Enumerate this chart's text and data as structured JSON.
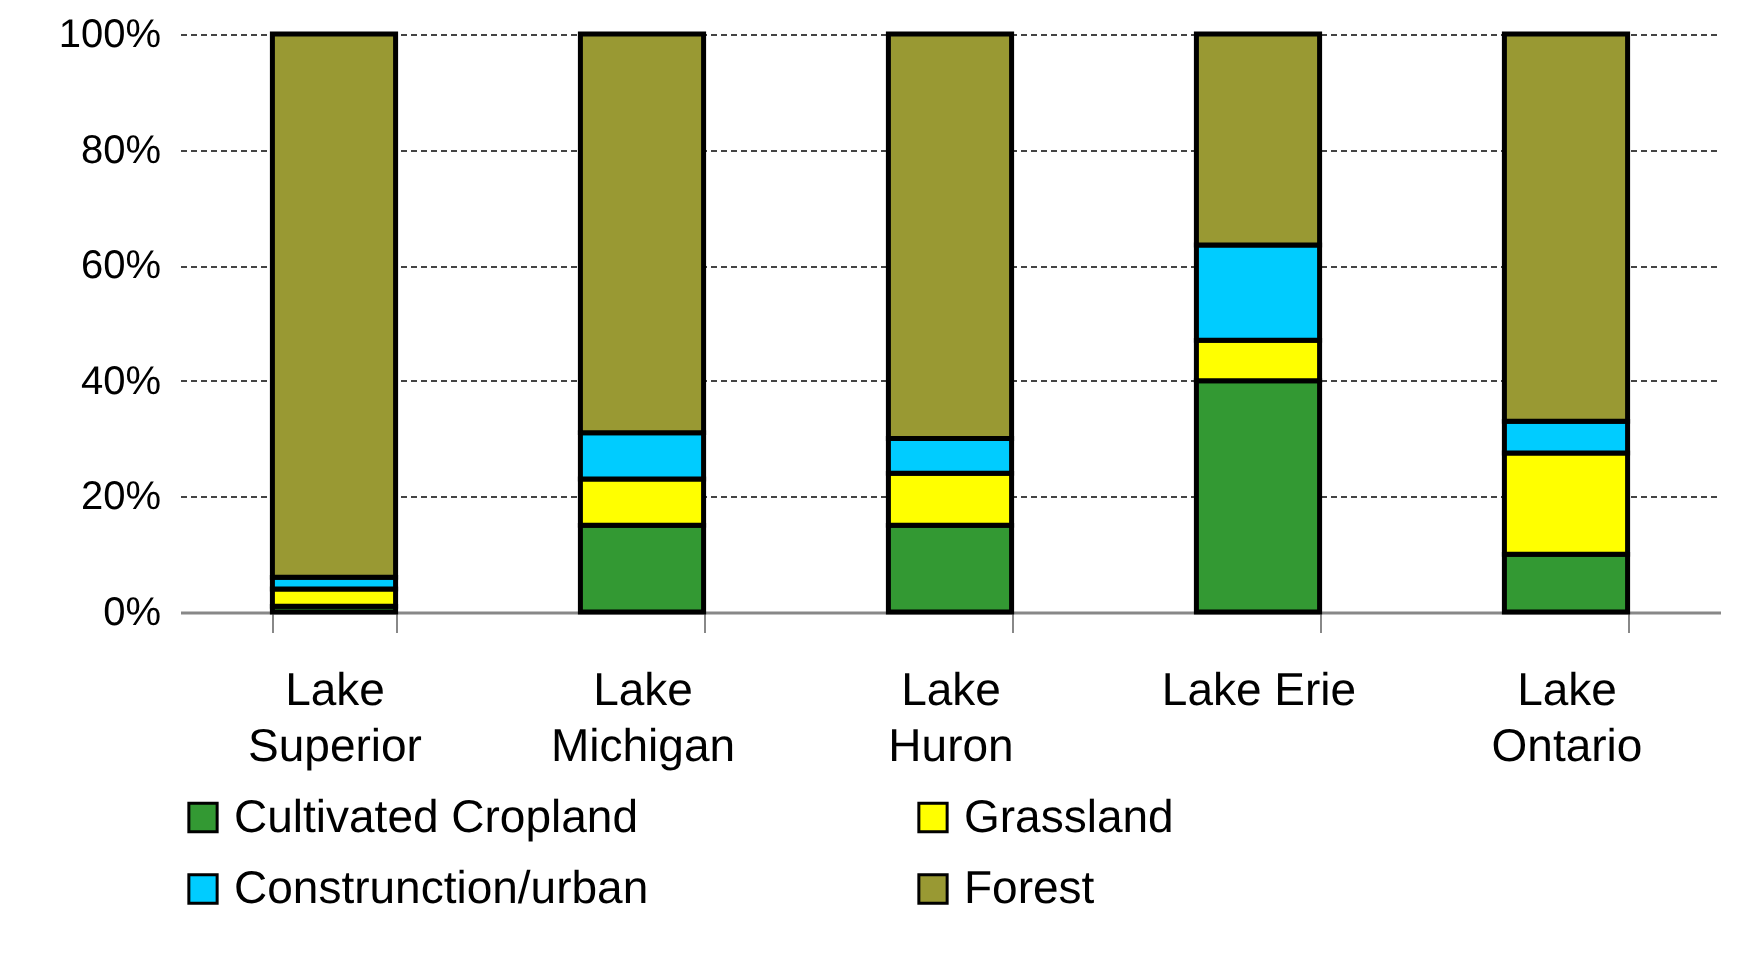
{
  "chart_data": {
    "type": "bar",
    "stacked": true,
    "categories": [
      "Lake Superior",
      "Lake Michigan",
      "Lake Huron",
      "Lake Erie",
      "Lake Ontario"
    ],
    "series": [
      {
        "name": "Cultivated Cropland",
        "color": "#339933",
        "values": [
          1,
          15,
          15,
          40,
          10
        ]
      },
      {
        "name": "Grassland",
        "color": "#ffff00",
        "values": [
          3,
          8,
          9,
          7,
          17.5
        ]
      },
      {
        "name": "Construnction/urban",
        "color": "#00ccff",
        "values": [
          2,
          8,
          6,
          16.5,
          5.5
        ]
      },
      {
        "name": "Forest",
        "color": "#999933",
        "values": [
          94,
          69,
          70,
          36.5,
          67
        ]
      }
    ],
    "ylim": [
      0,
      100
    ],
    "yticks": [
      {
        "value": 0,
        "label": "0%"
      },
      {
        "value": 20,
        "label": "20%"
      },
      {
        "value": 40,
        "label": "40%"
      },
      {
        "value": 60,
        "label": "60%"
      },
      {
        "value": 80,
        "label": "80%"
      },
      {
        "value": 100,
        "label": "100%"
      }
    ],
    "grid": "y",
    "legend": "bottom"
  }
}
